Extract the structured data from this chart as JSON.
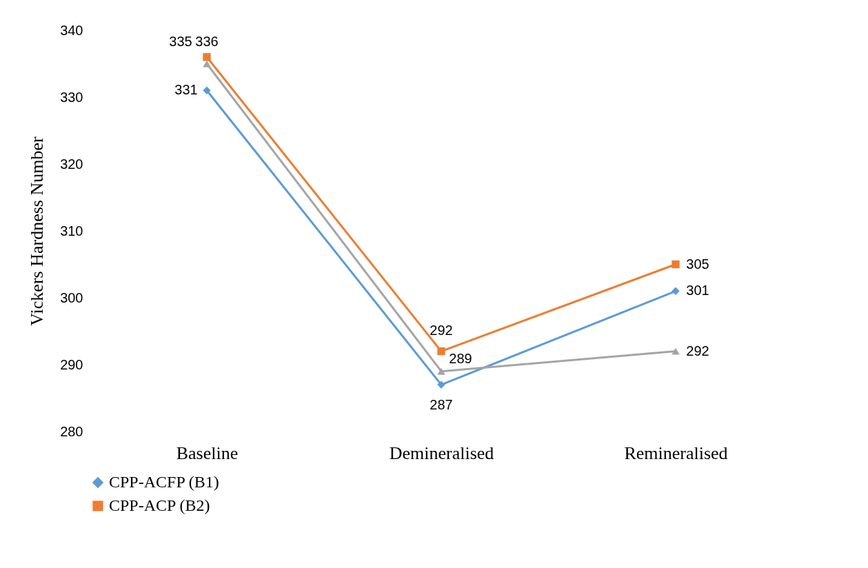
{
  "chart_data": {
    "type": "line",
    "ylabel": "Vickers Hardness Number",
    "categories": [
      "Baseline",
      "Demineralised",
      "Remineralised"
    ],
    "series": [
      {
        "name": "CPP-ACFP (B1)",
        "color": "#5b9bd5",
        "marker": "diamond",
        "values": [
          331,
          287,
          301
        ]
      },
      {
        "name": "CPP-ACP (B2)",
        "color": "#ed7d31",
        "marker": "square",
        "values": [
          336,
          292,
          305
        ]
      },
      {
        "color": "#a5a5a5",
        "marker": "triangle",
        "values": [
          335,
          289,
          292
        ]
      }
    ],
    "ylim": [
      280,
      340
    ],
    "yticks": [
      280,
      290,
      300,
      310,
      320,
      330,
      340
    ],
    "grid": false,
    "data_labels": true,
    "legend": "bottom"
  }
}
